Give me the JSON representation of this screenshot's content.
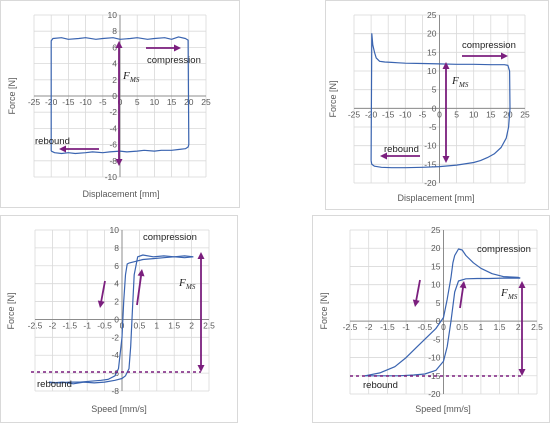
{
  "colors": {
    "curve": "#3a64b0",
    "arrow": "#7b1f7e",
    "grid": "#d9d9d9",
    "axis": "#8c8c8c",
    "text": "#595959"
  },
  "chart_data": [
    {
      "type": "line",
      "xlabel": "Displacement [mm]",
      "ylabel": "Force [N]",
      "xlim": [
        -25,
        25
      ],
      "ylim": [
        -10,
        10
      ],
      "xticks": [
        -25,
        -20,
        -15,
        -10,
        -5,
        0,
        5,
        10,
        15,
        20,
        25
      ],
      "yticks": [
        -10,
        -8,
        -6,
        -4,
        -2,
        0,
        2,
        4,
        6,
        8,
        10
      ],
      "annotations": {
        "compression": "compression",
        "rebound": "rebound",
        "fms_main": "F",
        "fms_sub": "MS"
      },
      "series": [
        {
          "x": [
            -20,
            -20,
            -19.5,
            -17,
            -15,
            -12,
            -10,
            -7,
            -5,
            -2,
            0,
            3,
            5,
            8,
            10,
            13,
            15,
            17,
            19,
            19.8,
            20,
            19.8,
            19,
            17,
            15,
            12,
            10,
            7,
            5,
            2,
            0,
            -3,
            -5,
            -8,
            -10,
            -13,
            -15,
            -17,
            -19,
            -20
          ],
          "y": [
            -6.8,
            6.8,
            7.1,
            7.2,
            7.0,
            7.1,
            7.2,
            7.0,
            7.1,
            7.2,
            7.0,
            7.1,
            7.2,
            7.0,
            7.1,
            7.2,
            7.0,
            7.3,
            7.1,
            6.9,
            -6.0,
            -6.3,
            -6.5,
            -6.6,
            -6.7,
            -6.7,
            -6.8,
            -6.7,
            -6.8,
            -6.9,
            -6.8,
            -6.9,
            -7.0,
            -6.9,
            -7.0,
            -7.1,
            -7.0,
            -7.1,
            -7.0,
            -6.8
          ]
        }
      ]
    },
    {
      "type": "line",
      "xlabel": "Displacement [mm]",
      "ylabel": "Force [N]",
      "xlim": [
        -25,
        25
      ],
      "ylim": [
        -20,
        25
      ],
      "xticks": [
        -25,
        -20,
        -15,
        -10,
        -5,
        0,
        5,
        10,
        15,
        20,
        25
      ],
      "yticks": [
        -20,
        -15,
        -10,
        -5,
        0,
        5,
        10,
        15,
        20,
        25
      ],
      "annotations": {
        "compression": "compression",
        "rebound": "rebound",
        "fms_main": "F",
        "fms_sub": "MS"
      },
      "series": [
        {
          "x": [
            -20,
            -19.8,
            -19.5,
            -19,
            -18.5,
            -17.5,
            -16,
            -14,
            -12,
            -10,
            -5,
            0,
            5,
            10,
            15,
            19,
            20,
            20.5,
            20.6,
            20.2,
            19.5,
            18,
            16,
            14,
            12,
            10,
            5,
            0,
            -5,
            -10,
            -14,
            -17,
            -19,
            -19.8,
            -20
          ],
          "y": [
            -14,
            20,
            17,
            15,
            13.5,
            12.6,
            12.4,
            12.3,
            12.2,
            12.1,
            12.0,
            11.9,
            11.8,
            11.8,
            11.7,
            11.7,
            11.5,
            10,
            0,
            -5,
            -8,
            -10.5,
            -12.2,
            -13.2,
            -14,
            -14.5,
            -15.2,
            -15.6,
            -15.8,
            -15.9,
            -15.9,
            -15.8,
            -15.5,
            -15,
            -14
          ]
        }
      ]
    },
    {
      "type": "line",
      "xlabel": "Speed [mm/s]",
      "ylabel": "Force [N]",
      "xlim": [
        -2.5,
        2.5
      ],
      "ylim": [
        -8,
        10
      ],
      "xticks": [
        -2.5,
        -2,
        -1.5,
        -1,
        -0.5,
        0,
        0.5,
        1,
        1.5,
        2,
        2.5
      ],
      "yticks": [
        -8,
        -6,
        -4,
        -2,
        0,
        2,
        4,
        6,
        8,
        10
      ],
      "annotations": {
        "compression": "compression",
        "rebound": "rebound",
        "fms_main": "F",
        "fms_sub": "MS"
      },
      "series": [
        {
          "x": [
            -2.1,
            -1.8,
            -1.5,
            -1.2,
            -0.9,
            -0.6,
            -0.4,
            -0.2,
            -0.1,
            0.0,
            0.05,
            0.1,
            0.15,
            0.2,
            0.4,
            0.6,
            0.9,
            1.2,
            1.5,
            1.8,
            2.05
          ],
          "y": [
            -7,
            -7.1,
            -7.0,
            -7.0,
            -6.9,
            -6.8,
            -6.7,
            -6.3,
            -5.5,
            -2,
            2,
            5,
            6.2,
            6.3,
            6.5,
            6.7,
            6.8,
            6.9,
            7.0,
            6.9,
            7.0
          ]
        },
        {
          "x": [
            2.05,
            1.8,
            1.5,
            1.2,
            0.9,
            0.6,
            0.45,
            0.35,
            0.3,
            0.25,
            0.2,
            0.1,
            0.0,
            -0.2,
            -0.5,
            -0.8,
            -1.1,
            -1.4,
            -1.7,
            -2.0,
            -2.1
          ],
          "y": [
            7.0,
            7.1,
            7.0,
            7.1,
            7.0,
            7.2,
            7.0,
            5,
            1,
            -3,
            -5.5,
            -6.3,
            -6.6,
            -6.8,
            -7.0,
            -7.1,
            -7.0,
            -7.2,
            -7.0,
            -7.1,
            -7.0
          ]
        }
      ]
    },
    {
      "type": "line",
      "xlabel": "Speed [mm/s]",
      "ylabel": "Force [N]",
      "xlim": [
        -2.5,
        2.5
      ],
      "ylim": [
        -20,
        25
      ],
      "xticks": [
        -2.5,
        -2,
        -1.5,
        -1,
        -0.5,
        0,
        0.5,
        1,
        1.5,
        2,
        2.5
      ],
      "yticks": [
        -20,
        -15,
        -10,
        -5,
        0,
        5,
        10,
        15,
        20,
        25
      ],
      "annotations": {
        "compression": "compression",
        "rebound": "rebound",
        "fms_main": "F",
        "fms_sub": "MS"
      },
      "series": [
        {
          "x": [
            -2.1,
            -1.7,
            -1.3,
            -1.0,
            -0.7,
            -0.4,
            -0.2,
            0.0,
            0.1,
            0.2,
            0.25,
            0.3,
            0.4,
            0.5,
            0.6,
            0.8,
            1.0,
            1.3,
            1.6,
            2.0,
            2.05
          ],
          "y": [
            -15,
            -14.2,
            -12.5,
            -10,
            -7,
            -4,
            -2,
            1,
            6,
            12,
            16,
            18,
            19.8,
            19.5,
            18,
            16,
            14.5,
            13,
            12.2,
            12,
            11.8
          ]
        },
        {
          "x": [
            2.05,
            1.6,
            1.2,
            0.9,
            0.6,
            0.4,
            0.3,
            0.2,
            0.1,
            0.0,
            -0.2,
            -0.5,
            -0.8,
            -1.2,
            -1.6,
            -2.0,
            -2.1
          ],
          "y": [
            11.8,
            11.8,
            11.7,
            11.7,
            11.6,
            11,
            8,
            0,
            -7,
            -11,
            -13.5,
            -14.5,
            -14.8,
            -15,
            -15,
            -15,
            -15
          ]
        }
      ]
    }
  ]
}
